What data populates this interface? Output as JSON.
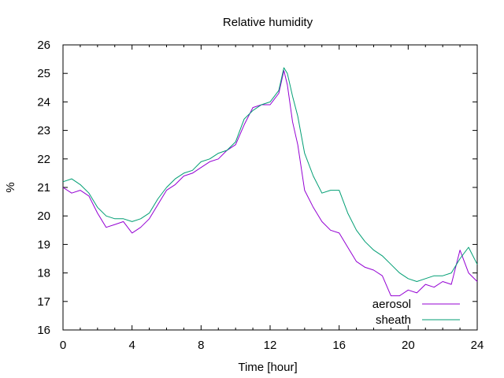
{
  "chart_data": {
    "type": "line",
    "title": "Relative humidity",
    "xlabel": "Time [hour]",
    "ylabel": "%",
    "xlim": [
      0,
      24
    ],
    "ylim": [
      16,
      26
    ],
    "xticks": [
      "0",
      "4",
      "8",
      "12",
      "16",
      "20",
      "24"
    ],
    "yticks": [
      "16",
      "17",
      "18",
      "19",
      "20",
      "21",
      "22",
      "23",
      "24",
      "25",
      "26"
    ],
    "legend_position": "bottom-right",
    "grid": false,
    "series": [
      {
        "name": "aerosol",
        "color": "#9400d3",
        "x": [
          0,
          0.5,
          1,
          1.5,
          2,
          2.5,
          3,
          3.5,
          4,
          4.5,
          5,
          5.5,
          6,
          6.5,
          7,
          7.5,
          8,
          8.5,
          9,
          9.5,
          10,
          10.5,
          11,
          11.5,
          12,
          12.5,
          12.8,
          13,
          13.3,
          13.6,
          14,
          14.5,
          15,
          15.5,
          16,
          16.5,
          17,
          17.5,
          18,
          18.5,
          19,
          19.5,
          20,
          20.5,
          21,
          21.5,
          22,
          22.5,
          23,
          23.5,
          24
        ],
        "values": [
          21.0,
          20.8,
          20.9,
          20.7,
          20.1,
          19.6,
          19.7,
          19.8,
          19.4,
          19.6,
          19.9,
          20.4,
          20.9,
          21.1,
          21.4,
          21.5,
          21.7,
          21.9,
          22.0,
          22.3,
          22.5,
          23.2,
          23.8,
          23.9,
          23.9,
          24.3,
          25.1,
          24.6,
          23.3,
          22.5,
          20.9,
          20.3,
          19.8,
          19.5,
          19.4,
          18.9,
          18.4,
          18.2,
          18.1,
          17.9,
          17.2,
          17.2,
          17.4,
          17.3,
          17.6,
          17.5,
          17.7,
          17.6,
          18.8,
          18.0,
          17.7
        ]
      },
      {
        "name": "sheath",
        "color": "#009e73",
        "x": [
          0,
          0.5,
          1,
          1.5,
          2,
          2.5,
          3,
          3.5,
          4,
          4.5,
          5,
          5.5,
          6,
          6.5,
          7,
          7.5,
          8,
          8.5,
          9,
          9.5,
          10,
          10.5,
          11,
          11.5,
          12,
          12.5,
          12.8,
          13,
          13.3,
          13.6,
          14,
          14.5,
          15,
          15.5,
          16,
          16.5,
          17,
          17.5,
          18,
          18.5,
          19,
          19.5,
          20,
          20.5,
          21,
          21.5,
          22,
          22.5,
          23,
          23.5,
          24
        ],
        "values": [
          21.2,
          21.3,
          21.1,
          20.8,
          20.3,
          20.0,
          19.9,
          19.9,
          19.8,
          19.9,
          20.1,
          20.6,
          21.0,
          21.3,
          21.5,
          21.6,
          21.9,
          22.0,
          22.2,
          22.3,
          22.6,
          23.4,
          23.7,
          23.9,
          24.0,
          24.4,
          25.2,
          25.0,
          24.2,
          23.5,
          22.2,
          21.4,
          20.8,
          20.9,
          20.9,
          20.1,
          19.5,
          19.1,
          18.8,
          18.6,
          18.3,
          18.0,
          17.8,
          17.7,
          17.8,
          17.9,
          17.9,
          18.0,
          18.5,
          18.9,
          18.3
        ]
      }
    ]
  }
}
